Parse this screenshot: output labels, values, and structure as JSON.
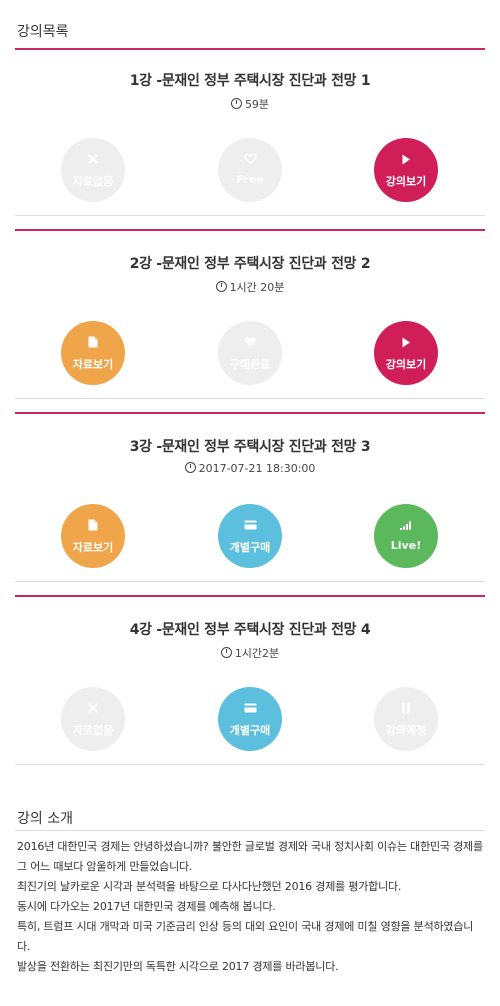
{
  "lecture_list": {
    "title": "강의목록"
  },
  "lectures": [
    {
      "title": "1강 -문재인 정부 주택시장 진단과 전망 1",
      "meta": "59분",
      "buttons": [
        {
          "label": "자료없음",
          "icon": "x-icon",
          "state": "disabled",
          "color": "#eeeeee"
        },
        {
          "label": "Free",
          "icon": "heart-outline-icon",
          "state": "disabled",
          "color": "#eeeeee"
        },
        {
          "label": "강의보기",
          "icon": "play-icon",
          "state": "active",
          "color": "#d01e58"
        }
      ]
    },
    {
      "title": "2강 -문재인 정부 주택시장 진단과 전망 2",
      "meta": "1시간 20분",
      "buttons": [
        {
          "label": "자료보기",
          "icon": "document-icon",
          "state": "active",
          "color": "#f0a54a"
        },
        {
          "label": "구매완료",
          "icon": "heart-icon",
          "state": "disabled",
          "color": "#eeeeee"
        },
        {
          "label": "강의보기",
          "icon": "play-icon",
          "state": "active",
          "color": "#d01e58"
        }
      ]
    },
    {
      "title": "3강 -문재인 정부 주택시장 진단과 전망 3",
      "meta": "2017-07-21 18:30:00",
      "buttons": [
        {
          "label": "자료보기",
          "icon": "document-icon",
          "state": "active",
          "color": "#f0a54a"
        },
        {
          "label": "개별구매",
          "icon": "card-icon",
          "state": "active",
          "color": "#5bbfdd"
        },
        {
          "label": "Live!",
          "icon": "signal-icon",
          "state": "active",
          "color": "#5cb85c"
        }
      ]
    },
    {
      "title": "4강 -문재인 정부 주택시장 진단과 전망 4",
      "meta": "1시간2분",
      "buttons": [
        {
          "label": "자료없음",
          "icon": "x-icon",
          "state": "disabled",
          "color": "#eeeeee"
        },
        {
          "label": "개별구매",
          "icon": "card-icon",
          "state": "active",
          "color": "#5bbfdd"
        },
        {
          "label": "강의예정",
          "icon": "pause-icon",
          "state": "disabled",
          "color": "#eeeeee"
        }
      ]
    }
  ],
  "intro": {
    "title": "강의 소개",
    "paragraphs": [
      "2016년 대한민국 경제는 안녕하셨습니까? 불안한 글로벌 경제와 국내 정치사회 이슈는 대한민국 경제를 그 어느 때보다 암울하게 만들었습니다.",
      "최진기의 날카로운 시각과 분석력을 바탕으로 다사다난했던 2016 경제를 평가합니다.",
      "동시에 다가오는 2017년 대한민국 경제를 예측해 봅니다.",
      "특히, 트럼프 시대 개막과 미국 기준금리 인상 등의 대외 요인이 국내 경제에 미칠 영향을 분석하였습니다.",
      "발상을 전환하는 최진기만의 독특한 시각으로 2017 경제를 바라봅니다."
    ]
  },
  "colors": {
    "accent": "#c8285a",
    "disabled": "#eeeeee",
    "magenta": "#d01e58",
    "orange": "#f0a54a",
    "blue": "#5bbfdd",
    "green": "#5cb85c"
  }
}
